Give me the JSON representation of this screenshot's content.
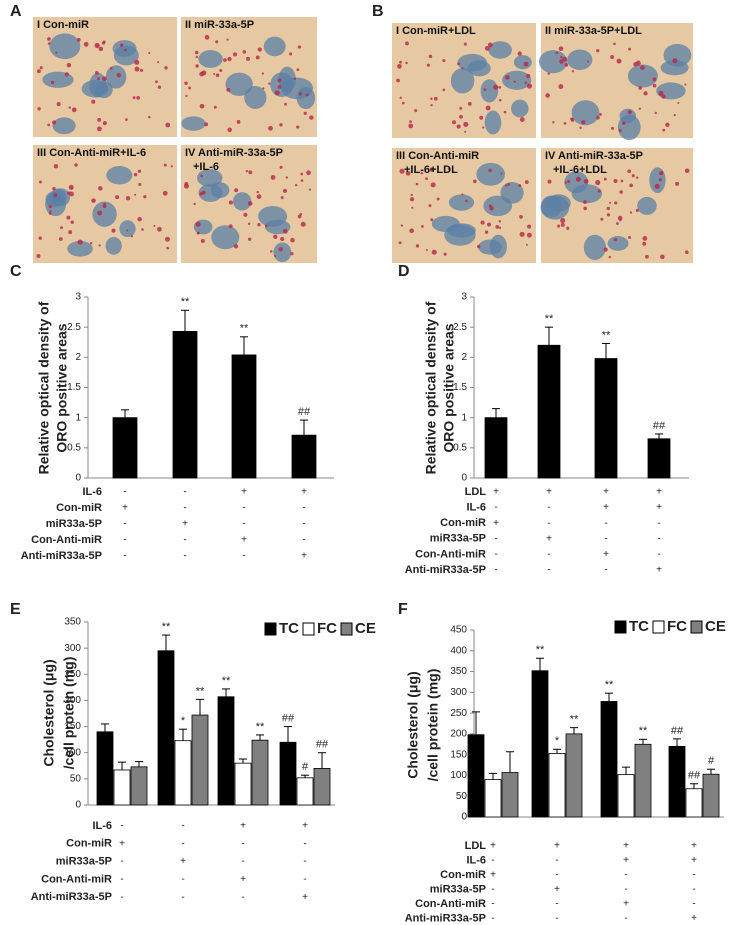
{
  "figure_panels": [
    {
      "label": "A",
      "images": [
        {
          "caption": [
            "I Con-miR"
          ]
        },
        {
          "caption": [
            "II miR-33a-5P"
          ]
        },
        {
          "caption": [
            "III Con-Anti-miR+IL-6"
          ]
        },
        {
          "caption": [
            "IV Anti-miR-33a-5P",
            "+IL-6"
          ]
        }
      ]
    },
    {
      "label": "B",
      "images": [
        {
          "caption": [
            "I Con-miR+LDL"
          ]
        },
        {
          "caption": [
            "II miR-33a-5P+LDL"
          ]
        },
        {
          "caption": [
            "III Con-Anti-miR",
            "+IL-6+LDL"
          ]
        },
        {
          "caption": [
            "IV Anti-miR-33a-5P",
            "+IL-6+LDL"
          ]
        }
      ]
    }
  ],
  "chart_data": [
    {
      "type": "bar",
      "label": "C",
      "y_label": [
        "Relative optical density of",
        "ORO positive areas"
      ],
      "values": [
        1.0,
        2.43,
        2.04,
        0.71
      ],
      "errors": [
        0.13,
        0.35,
        0.3,
        0.25
      ],
      "annotations": [
        null,
        "**",
        "**",
        "##"
      ],
      "color": "#000000",
      "ylim": [
        0,
        3
      ],
      "yticks": [
        0,
        0.5,
        1,
        1.5,
        2,
        2.5,
        3
      ],
      "conditions": [
        {
          "name": "IL-6",
          "signs": [
            "-",
            "-",
            "+",
            "+"
          ]
        },
        {
          "name": "Con-miR",
          "signs": [
            "+",
            "-",
            "-",
            "-"
          ]
        },
        {
          "name": "miR33a-5P",
          "signs": [
            "-",
            "+",
            "-",
            "-"
          ]
        },
        {
          "name": "Con-Anti-miR",
          "signs": [
            "-",
            "-",
            "+",
            "-"
          ]
        },
        {
          "name": "Anti-miR33a-5P",
          "signs": [
            "-",
            "-",
            "-",
            "+"
          ]
        }
      ]
    },
    {
      "type": "bar",
      "label": "D",
      "y_label": [
        "Relative optical density of",
        "ORO positive areas"
      ],
      "values": [
        1.0,
        2.2,
        1.98,
        0.65
      ],
      "errors": [
        0.15,
        0.3,
        0.25,
        0.08
      ],
      "annotations": [
        null,
        "**",
        "**",
        "##"
      ],
      "color": "#000000",
      "ylim": [
        0,
        3
      ],
      "yticks": [
        0,
        0.5,
        1,
        1.5,
        2,
        2.5,
        3
      ],
      "conditions": [
        {
          "name": "LDL",
          "signs": [
            "+",
            "+",
            "+",
            "+"
          ]
        },
        {
          "name": "IL-6",
          "signs": [
            "-",
            "-",
            "+",
            "+"
          ]
        },
        {
          "name": "Con-miR",
          "signs": [
            "+",
            "-",
            "-",
            "-"
          ]
        },
        {
          "name": "miR33a-5P",
          "signs": [
            "-",
            "+",
            "-",
            "-"
          ]
        },
        {
          "name": "Con-Anti-miR",
          "signs": [
            "-",
            "-",
            "+",
            "-"
          ]
        },
        {
          "name": "Anti-miR33a-5P",
          "signs": [
            "-",
            "-",
            "-",
            "+"
          ]
        }
      ]
    },
    {
      "type": "bar",
      "label": "E",
      "y_label": [
        "Cholesterol (μg)",
        "/cell protein (mg)"
      ],
      "series": [
        {
          "name": "TC",
          "color": "#000000",
          "values": [
            140,
            295,
            207,
            120
          ],
          "errors": [
            15,
            30,
            15,
            30
          ],
          "annotations": [
            null,
            "**",
            "**",
            "##"
          ]
        },
        {
          "name": "FC",
          "color": "#ffffff",
          "values": [
            67,
            123,
            80,
            52
          ],
          "errors": [
            15,
            22,
            8,
            5
          ],
          "annotations": [
            null,
            "*",
            null,
            "#"
          ]
        },
        {
          "name": "CE",
          "color": "#808080",
          "values": [
            73,
            172,
            124,
            70
          ],
          "errors": [
            10,
            30,
            10,
            30
          ],
          "annotations": [
            null,
            "**",
            "**",
            "##"
          ]
        }
      ],
      "ylim": [
        0,
        350
      ],
      "yticks": [
        0,
        50,
        100,
        150,
        200,
        250,
        300,
        350
      ],
      "conditions": [
        {
          "name": "IL-6",
          "signs": [
            "-",
            "-",
            "+",
            "+"
          ]
        },
        {
          "name": "Con-miR",
          "signs": [
            "+",
            "-",
            "-",
            "-"
          ]
        },
        {
          "name": "miR33a-5P",
          "signs": [
            "-",
            "+",
            "-",
            "-"
          ]
        },
        {
          "name": "Con-Anti-miR",
          "signs": [
            "-",
            "-",
            "+",
            "-"
          ]
        },
        {
          "name": "Anti-miR33a-5P",
          "signs": [
            "-",
            "-",
            "-",
            "+"
          ]
        }
      ]
    },
    {
      "type": "bar",
      "label": "F",
      "y_label": [
        "Cholesterol (μg)",
        "/cell protein (mg)"
      ],
      "series": [
        {
          "name": "TC",
          "color": "#000000",
          "values": [
            198,
            352,
            278,
            170
          ],
          "errors": [
            55,
            30,
            20,
            18
          ],
          "annotations": [
            null,
            "**",
            "**",
            "##"
          ]
        },
        {
          "name": "FC",
          "color": "#ffffff",
          "values": [
            90,
            153,
            102,
            68
          ],
          "errors": [
            15,
            10,
            18,
            12
          ],
          "annotations": [
            null,
            "*",
            null,
            "##"
          ]
        },
        {
          "name": "CE",
          "color": "#808080",
          "values": [
            107,
            200,
            175,
            103
          ],
          "errors": [
            50,
            15,
            12,
            12
          ],
          "annotations": [
            null,
            "**",
            "**",
            "#"
          ]
        }
      ],
      "ylim": [
        0,
        450
      ],
      "yticks": [
        0,
        50,
        100,
        150,
        200,
        250,
        300,
        350,
        400,
        450
      ],
      "conditions": [
        {
          "name": "LDL",
          "signs": [
            "+",
            "+",
            "+",
            "+"
          ]
        },
        {
          "name": "IL-6",
          "signs": [
            "-",
            "-",
            "+",
            "+"
          ]
        },
        {
          "name": "Con-miR",
          "signs": [
            "+",
            "-",
            "-",
            "-"
          ]
        },
        {
          "name": "miR33a-5P",
          "signs": [
            "-",
            "+",
            "-",
            "-"
          ]
        },
        {
          "name": "Con-Anti-miR",
          "signs": [
            "-",
            "-",
            "+",
            "-"
          ]
        },
        {
          "name": "Anti-miR33a-5P",
          "signs": [
            "-",
            "-",
            "-",
            "+"
          ]
        }
      ]
    }
  ]
}
